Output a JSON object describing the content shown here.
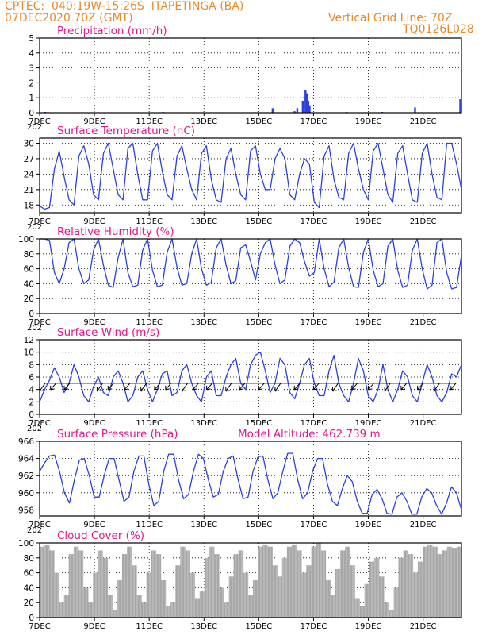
{
  "header": {
    "line1_left": "CPTEC:  040:19W-15:26S  ITAPETINGA (BA)",
    "line2_left": "07DEC2020 70Z (GMT)",
    "line2_right": "Vertical Grid Line: 70Z",
    "line3_right": "TQ0126L028"
  },
  "colors": {
    "line": "#2b40e0",
    "title": "#e0188c",
    "header": "#e8892a",
    "cloud": "#a8a8a8"
  },
  "x_ticks": [
    "7DEC",
    "9DEC",
    "11DEC",
    "13DEC",
    "15DEC",
    "17DEC",
    "19DEC",
    "21DEC"
  ],
  "x_clip": "202",
  "chart_data": [
    {
      "id": "precip",
      "type": "bar",
      "title": "Precipitation (mm/h)",
      "ylim": [
        0,
        5
      ],
      "yticks": [
        "0",
        "1",
        "2",
        "3",
        "4",
        "5"
      ],
      "x_range_days": [
        7,
        22.4
      ],
      "series": [
        {
          "values_at_days": [
            [
              7.2,
              0.05
            ],
            [
              11.5,
              0.05
            ],
            [
              15.5,
              0.3
            ],
            [
              16.3,
              0.1
            ],
            [
              16.4,
              0.3
            ],
            [
              16.6,
              0.8
            ],
            [
              16.7,
              1.5
            ],
            [
              16.75,
              1.3
            ],
            [
              16.8,
              0.8
            ],
            [
              16.85,
              0.5
            ],
            [
              18.2,
              0.05
            ],
            [
              19.5,
              0.05
            ],
            [
              20.7,
              0.35
            ],
            [
              22.35,
              0.9
            ]
          ]
        }
      ]
    },
    {
      "id": "temp",
      "type": "line",
      "title": "Surface Temperature (nC)",
      "ylim": [
        16.5,
        31
      ],
      "yticks": [
        "18",
        "21",
        "24",
        "27",
        "30"
      ],
      "series": [
        {
          "values": [
            17.8,
            17.2,
            17.5,
            25,
            28.5,
            23.5,
            19,
            18,
            27.5,
            29.5,
            26,
            20,
            19,
            28,
            30,
            25,
            20,
            19,
            29,
            30,
            24,
            19,
            19,
            28.5,
            30,
            24.5,
            20,
            19,
            27.5,
            29.5,
            25,
            21,
            19,
            28,
            29.5,
            23,
            19,
            18.5,
            27,
            29,
            24,
            20,
            19,
            28.5,
            29.5,
            24,
            21,
            21,
            27,
            29,
            27,
            20,
            19,
            24,
            27,
            26,
            18.5,
            17.5,
            27.5,
            29.5,
            23,
            19.5,
            19,
            28,
            30,
            25,
            21,
            19,
            28.5,
            30,
            25,
            20,
            18.5,
            28,
            29.5,
            24,
            19,
            18.5,
            28,
            30,
            24,
            19.5,
            19,
            30,
            30,
            26,
            21
          ]
        }
      ]
    },
    {
      "id": "rh",
      "type": "line",
      "title": "Relative Humidity (%)",
      "ylim": [
        0,
        100
      ],
      "yticks": [
        "0",
        "20",
        "40",
        "60",
        "80",
        "100"
      ],
      "series": [
        {
          "values": [
            100,
            100,
            98,
            55,
            40,
            60,
            95,
            100,
            60,
            40,
            45,
            85,
            100,
            65,
            38,
            35,
            75,
            100,
            55,
            36,
            38,
            85,
            100,
            58,
            36,
            38,
            82,
            100,
            62,
            38,
            40,
            80,
            100,
            60,
            38,
            42,
            88,
            100,
            65,
            40,
            44,
            88,
            92,
            70,
            45,
            80,
            95,
            100,
            65,
            40,
            45,
            90,
            100,
            95,
            70,
            50,
            55,
            100,
            60,
            36,
            42,
            88,
            100,
            62,
            36,
            35,
            82,
            100,
            58,
            36,
            40,
            90,
            100,
            58,
            35,
            38,
            85,
            100,
            60,
            33,
            38,
            95,
            100,
            55,
            33,
            35,
            78
          ]
        }
      ]
    },
    {
      "id": "wind",
      "type": "line",
      "title": "Surface Wind (m/s)",
      "ylim": [
        0,
        12
      ],
      "yticks": [
        "0",
        "2",
        "4",
        "6",
        "8",
        "10",
        "12"
      ],
      "series": [
        {
          "values": [
            2,
            4,
            5.5,
            7.5,
            6,
            3.5,
            5,
            8,
            6,
            3,
            2,
            4.5,
            6,
            3.5,
            3,
            6,
            7,
            5,
            2,
            3,
            6,
            7,
            4,
            2,
            4,
            6.5,
            7,
            3,
            3.5,
            7,
            8,
            5,
            3,
            2,
            6,
            7,
            3,
            3,
            6,
            8,
            9,
            5,
            4,
            8,
            9.5,
            10,
            7,
            3.5,
            5,
            9,
            8,
            3.5,
            2.5,
            5,
            8,
            9,
            5,
            3,
            3,
            7,
            9.5,
            5,
            3,
            2,
            5,
            9,
            7,
            3,
            2,
            4,
            8,
            4,
            2,
            4,
            7,
            6,
            3,
            2,
            5,
            8,
            6,
            3,
            2,
            3.5,
            6.5,
            6,
            8
          ]
        }
      ],
      "arrow_level": 5,
      "arrow_days": [
        7.2,
        7.6,
        8.1,
        9.3,
        9.7,
        10.3,
        10.9,
        11.4,
        11.8,
        12.4,
        12.8,
        13.3,
        14,
        14.5,
        15.2,
        15.8,
        16.5,
        17.2,
        17.9,
        18.6,
        19.2,
        19.8,
        20.4,
        21,
        21.6,
        22.2
      ]
    },
    {
      "id": "pressure",
      "type": "line",
      "title": "Surface Pressure (hPa)",
      "annotation": "Model Altitude: 462.739 m",
      "ylim": [
        957.3,
        966
      ],
      "yticks": [
        "958",
        "960",
        "962",
        "964",
        "966"
      ],
      "series": [
        {
          "values": [
            962.5,
            963.5,
            964.3,
            964.4,
            962.5,
            960,
            958.8,
            961.5,
            963.8,
            964,
            962,
            959.5,
            959.5,
            962,
            964,
            964,
            961.5,
            959,
            959.5,
            962.5,
            964.3,
            964.3,
            961,
            958.5,
            959,
            962.5,
            964.5,
            964.5,
            961.5,
            959.3,
            959.8,
            962.5,
            964.5,
            964,
            961.5,
            959.5,
            959.8,
            962.5,
            964,
            964.3,
            961.5,
            959.3,
            959.5,
            962.5,
            964.2,
            964.3,
            961.5,
            959.3,
            960,
            962.5,
            964.6,
            964.6,
            961.5,
            959.3,
            960,
            962.5,
            964,
            964,
            961,
            959,
            958.5,
            960.5,
            962,
            961.3,
            959,
            957.6,
            957.6,
            959.8,
            960.4,
            959.3,
            957.6,
            957.5,
            959.5,
            960,
            959,
            957.5,
            957.5,
            959.5,
            960.5,
            960,
            958.5,
            957.5,
            958.8,
            960.7,
            960,
            958
          ]
        }
      ]
    },
    {
      "id": "cloud",
      "type": "bar",
      "title": "Cloud Cover (%)",
      "ylim": [
        0,
        100
      ],
      "yticks": [
        "0",
        "20",
        "40",
        "60",
        "80",
        "100"
      ],
      "series": [
        {
          "values": [
            95,
            97,
            90,
            60,
            20,
            30,
            85,
            95,
            90,
            40,
            20,
            60,
            90,
            80,
            30,
            10,
            50,
            85,
            95,
            70,
            30,
            20,
            60,
            90,
            85,
            50,
            15,
            20,
            70,
            95,
            90,
            60,
            25,
            35,
            80,
            95,
            85,
            40,
            20,
            55,
            85,
            90,
            60,
            30,
            50,
            95,
            98,
            95,
            70,
            55,
            80,
            95,
            98,
            90,
            60,
            70,
            95,
            100,
            90,
            50,
            30,
            65,
            90,
            95,
            70,
            25,
            15,
            45,
            75,
            80,
            55,
            20,
            10,
            40,
            80,
            90,
            85,
            60,
            75,
            95,
            98,
            95,
            85,
            90,
            95,
            93,
            95
          ]
        }
      ]
    }
  ]
}
